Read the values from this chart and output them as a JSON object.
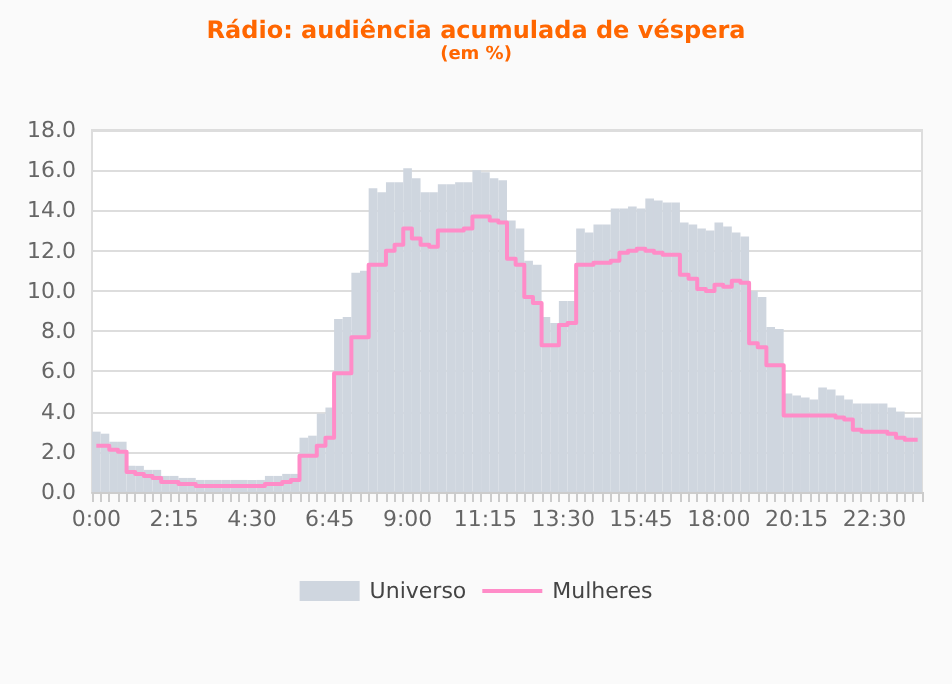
{
  "chart_data": {
    "type": "bar",
    "title": "Rádio: audiência acumulada de véspera",
    "subtitle": "(em %)",
    "categories": [
      "0:00",
      null,
      null,
      null,
      null,
      null,
      null,
      null,
      null,
      "2:15",
      null,
      null,
      null,
      null,
      null,
      null,
      null,
      null,
      "4:30",
      null,
      null,
      null,
      null,
      null,
      null,
      null,
      null,
      "6:45",
      null,
      null,
      null,
      null,
      null,
      null,
      null,
      null,
      "9:00",
      null,
      null,
      null,
      null,
      null,
      null,
      null,
      null,
      "11:15",
      null,
      null,
      null,
      null,
      null,
      null,
      null,
      null,
      "13:30",
      null,
      null,
      null,
      null,
      null,
      null,
      null,
      null,
      "15:45",
      null,
      null,
      null,
      null,
      null,
      null,
      null,
      null,
      "18:00",
      null,
      null,
      null,
      null,
      null,
      null,
      null,
      null,
      "20:15",
      null,
      null,
      null,
      null,
      null,
      null,
      null,
      null,
      "22:30",
      null,
      null,
      null,
      null,
      null
    ],
    "series": [
      {
        "name": "Universo",
        "color": "#cfd6df",
        "values": [
          3.0,
          2.9,
          2.5,
          2.5,
          1.3,
          1.3,
          1.1,
          1.1,
          0.8,
          0.8,
          0.7,
          0.7,
          0.6,
          0.6,
          0.6,
          0.6,
          0.6,
          0.6,
          0.6,
          0.6,
          0.8,
          0.8,
          0.9,
          0.9,
          2.7,
          2.8,
          3.9,
          4.2,
          8.6,
          8.7,
          10.9,
          11.0,
          15.1,
          14.9,
          15.4,
          15.4,
          16.1,
          15.6,
          14.9,
          14.9,
          15.3,
          15.3,
          15.4,
          15.4,
          16.0,
          15.9,
          15.6,
          15.5,
          13.5,
          13.1,
          11.5,
          11.3,
          8.7,
          8.4,
          9.5,
          9.5,
          13.1,
          12.9,
          13.3,
          13.3,
          14.1,
          14.1,
          14.2,
          14.1,
          14.6,
          14.5,
          14.4,
          14.4,
          13.4,
          13.3,
          13.1,
          13.0,
          13.4,
          13.2,
          12.9,
          12.7,
          10.0,
          9.7,
          8.2,
          8.1,
          4.9,
          4.8,
          4.7,
          4.6,
          5.2,
          5.1,
          4.8,
          4.6,
          4.4,
          4.4,
          4.4,
          4.4,
          4.2,
          4.0,
          3.7,
          3.7
        ]
      },
      {
        "name": "Mulheres",
        "type": "step",
        "color": "#ff8cc8",
        "values": [
          2.3,
          2.3,
          2.1,
          2.0,
          1.0,
          0.9,
          0.8,
          0.7,
          0.5,
          0.5,
          0.4,
          0.4,
          0.3,
          0.3,
          0.3,
          0.3,
          0.3,
          0.3,
          0.3,
          0.3,
          0.4,
          0.4,
          0.5,
          0.6,
          1.8,
          1.8,
          2.3,
          2.7,
          5.9,
          5.9,
          7.7,
          7.7,
          11.3,
          11.3,
          12.0,
          12.3,
          13.1,
          12.6,
          12.3,
          12.2,
          13.0,
          13.0,
          13.0,
          13.1,
          13.7,
          13.7,
          13.5,
          13.4,
          11.6,
          11.3,
          9.7,
          9.4,
          7.3,
          7.3,
          8.3,
          8.4,
          11.3,
          11.3,
          11.4,
          11.4,
          11.5,
          11.9,
          12.0,
          12.1,
          12.0,
          11.9,
          11.8,
          11.8,
          10.8,
          10.6,
          10.1,
          10.0,
          10.3,
          10.2,
          10.5,
          10.4,
          7.4,
          7.2,
          6.3,
          6.3,
          3.8,
          3.8,
          3.8,
          3.8,
          3.8,
          3.8,
          3.7,
          3.6,
          3.1,
          3.0,
          3.0,
          3.0,
          2.9,
          2.7,
          2.6,
          2.6
        ]
      }
    ],
    "ylim": [
      0,
      18
    ],
    "yticks": [
      {
        "value": 0,
        "label": "0.0"
      },
      {
        "value": 2,
        "label": "2.0"
      },
      {
        "value": 4,
        "label": "4.0"
      },
      {
        "value": 6,
        "label": "6.0"
      },
      {
        "value": 8,
        "label": "8.0"
      },
      {
        "value": 10,
        "label": "10.0"
      },
      {
        "value": 12,
        "label": "12.0"
      },
      {
        "value": 14,
        "label": "14.0"
      },
      {
        "value": 16,
        "label": "16.0"
      },
      {
        "value": 18,
        "label": "18.0"
      }
    ],
    "grid": "y",
    "legend": "bottom",
    "marker": "none",
    "line_style": "solid"
  }
}
